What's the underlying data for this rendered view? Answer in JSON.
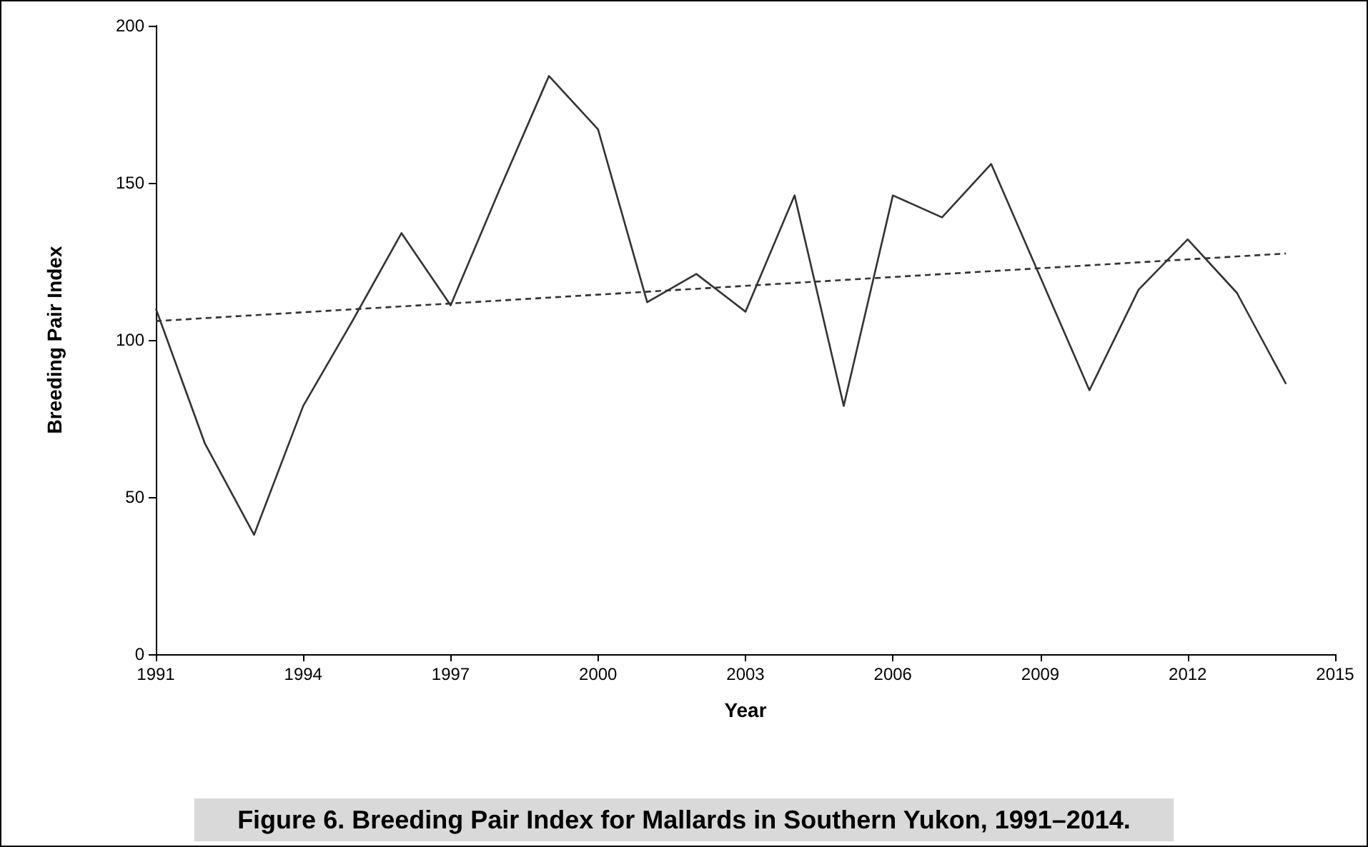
{
  "chart_data": {
    "type": "line",
    "title": "Figure 6. Breeding Pair Index for Mallards in Southern Yukon, 1991–2014.",
    "xlabel": "Year",
    "ylabel": "Breeding Pair Index",
    "x": [
      1991,
      1992,
      1993,
      1994,
      1995,
      1996,
      1997,
      1998,
      1999,
      2000,
      2001,
      2002,
      2003,
      2004,
      2005,
      2006,
      2007,
      2008,
      2009,
      2010,
      2011,
      2012,
      2013,
      2014
    ],
    "series": [
      {
        "color": "#333333",
        "values": [
          110,
          67,
          38,
          79,
          106,
          134,
          111,
          148,
          184,
          167,
          112,
          121,
          109,
          146,
          79,
          146,
          139,
          156,
          120,
          84,
          116,
          132,
          115,
          86
        ]
      },
      {
        "type": "line",
        "x": [
          1991,
          2014
        ],
        "color": "#333333",
        "line_style": "dashed",
        "values": [
          106,
          127.5
        ]
      }
    ],
    "xlim": [
      1991,
      2015
    ],
    "xticks": [
      1991,
      1994,
      1997,
      2000,
      2003,
      2006,
      2009,
      2012,
      2015
    ],
    "ylim": [
      0,
      200
    ],
    "yticks": [
      0,
      50,
      100,
      150,
      200
    ],
    "grid": false,
    "marker": "none",
    "line_style": "solid"
  }
}
